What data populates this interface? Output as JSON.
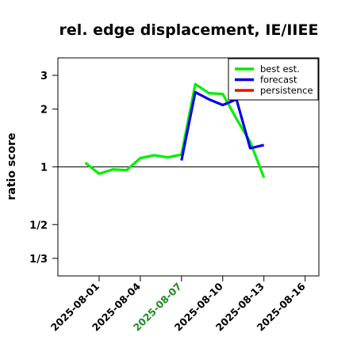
{
  "chart_data": {
    "type": "line",
    "title": "rel. edge displacement, IE/IIEE",
    "xlabel": "",
    "ylabel": "ratio score",
    "y_scale": "log",
    "ylim": [
      0.27,
      3.7
    ],
    "xlim": [
      "2025-07-29",
      "2025-08-17"
    ],
    "reference_line": 1,
    "grid": false,
    "legend_position": "top-right",
    "y_ticks": [
      {
        "value": 0.3333,
        "label": "1/3"
      },
      {
        "value": 0.5,
        "label": "1/2"
      },
      {
        "value": 1,
        "label": "1"
      },
      {
        "value": 2,
        "label": "2"
      },
      {
        "value": 3,
        "label": "3"
      }
    ],
    "x_ticks": [
      {
        "value": "2025-08-01",
        "label": "2025-08-01",
        "color": "#000000"
      },
      {
        "value": "2025-08-04",
        "label": "2025-08-04",
        "color": "#000000"
      },
      {
        "value": "2025-08-07",
        "label": "2025-08-07",
        "color": "#228B22"
      },
      {
        "value": "2025-08-10",
        "label": "2025-08-10",
        "color": "#000000"
      },
      {
        "value": "2025-08-13",
        "label": "2025-08-13",
        "color": "#000000"
      },
      {
        "value": "2025-08-16",
        "label": "2025-08-16",
        "color": "#000000"
      }
    ],
    "series": [
      {
        "name": "best est.",
        "color": "#00ee00",
        "points": [
          {
            "x": "2025-07-31",
            "y": 1.05
          },
          {
            "x": "2025-08-01",
            "y": 0.92
          },
          {
            "x": "2025-08-02",
            "y": 0.97
          },
          {
            "x": "2025-08-03",
            "y": 0.96
          },
          {
            "x": "2025-08-04",
            "y": 1.11
          },
          {
            "x": "2025-08-05",
            "y": 1.15
          },
          {
            "x": "2025-08-06",
            "y": 1.12
          },
          {
            "x": "2025-08-07",
            "y": 1.16
          },
          {
            "x": "2025-08-08",
            "y": 2.7
          },
          {
            "x": "2025-08-09",
            "y": 2.42
          },
          {
            "x": "2025-08-10",
            "y": 2.4
          },
          {
            "x": "2025-08-11",
            "y": 1.78
          },
          {
            "x": "2025-08-12",
            "y": 1.35
          },
          {
            "x": "2025-08-13",
            "y": 0.88
          }
        ]
      },
      {
        "name": "forecast",
        "color": "#0000ee",
        "points": [
          {
            "x": "2025-08-07",
            "y": 1.08
          },
          {
            "x": "2025-08-08",
            "y": 2.45
          },
          {
            "x": "2025-08-09",
            "y": 2.25
          },
          {
            "x": "2025-08-10",
            "y": 2.1
          },
          {
            "x": "2025-08-11",
            "y": 2.25
          },
          {
            "x": "2025-08-12",
            "y": 1.25
          },
          {
            "x": "2025-08-13",
            "y": 1.3
          }
        ]
      },
      {
        "name": "persistence",
        "color": "#ff0000",
        "points": []
      }
    ]
  }
}
